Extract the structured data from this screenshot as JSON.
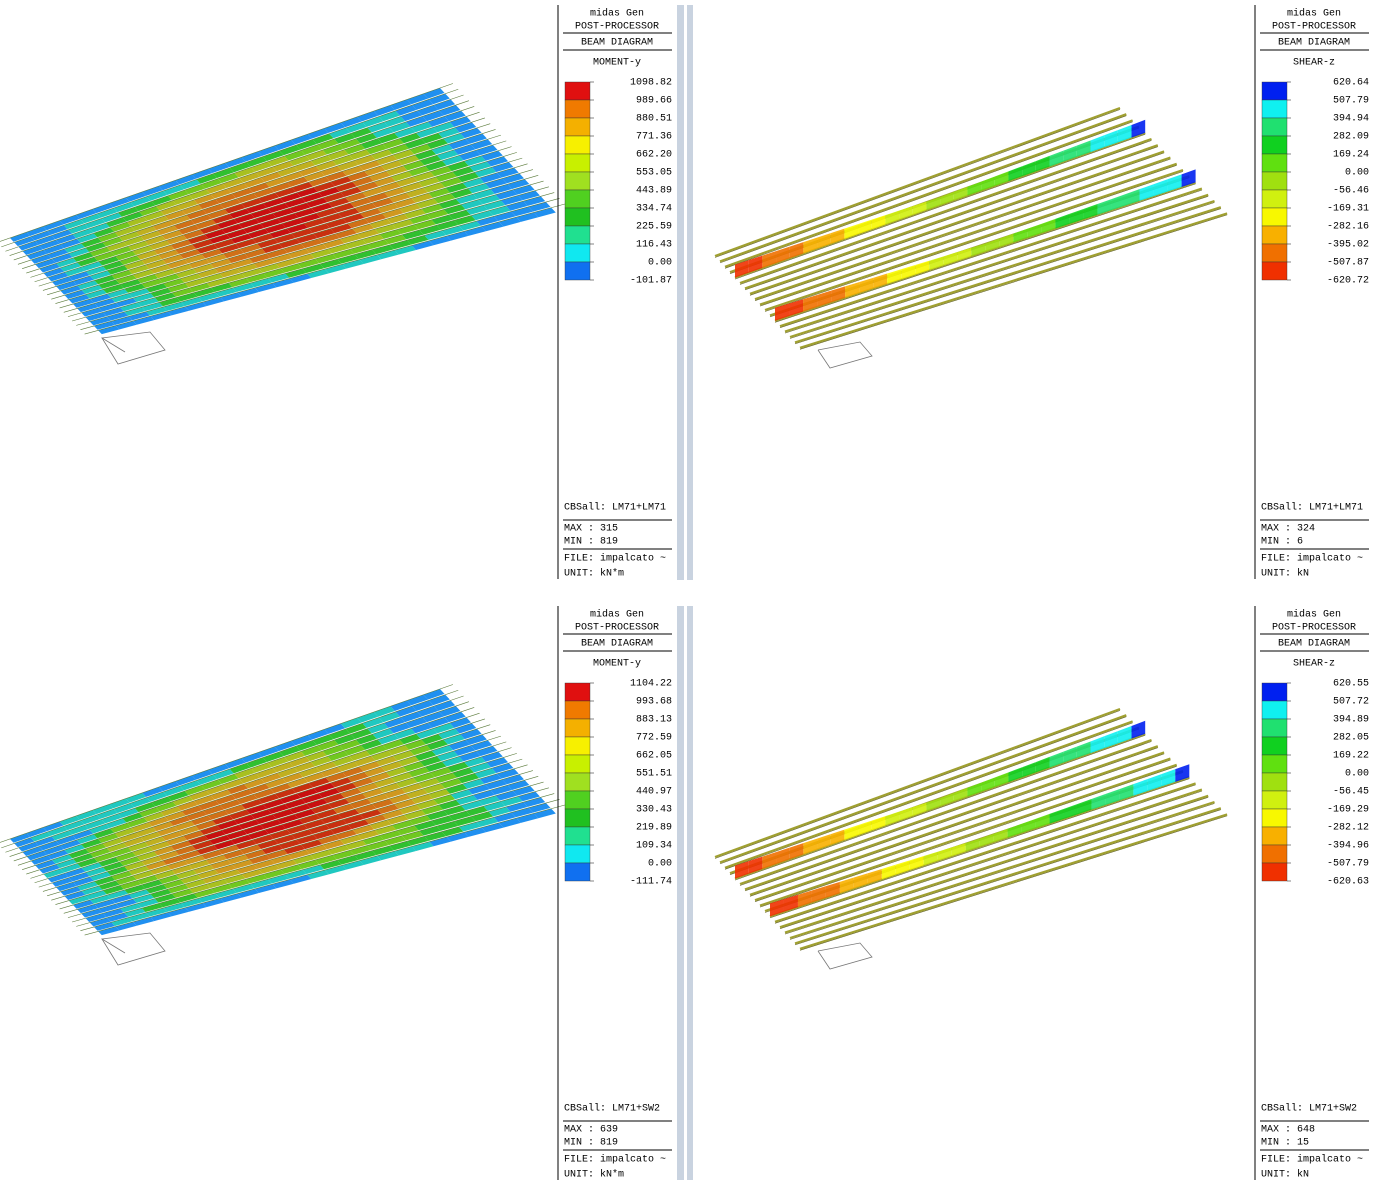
{
  "panels": [
    {
      "legend": {
        "program": "midas Gen",
        "mode": "POST-PROCESSOR",
        "diagram": "BEAM DIAGRAM",
        "component": "MOMENT-y",
        "levels": [
          "1098.82",
          "989.66",
          "880.51",
          "771.36",
          "662.20",
          "553.05",
          "443.89",
          "334.74",
          "225.59",
          "116.43",
          "0.00",
          "-101.87"
        ],
        "load_case": "CBSall: LM71+LM71",
        "max": "MAX : 315",
        "min": "MIN : 819",
        "file": "FILE: impalcato ~",
        "unit": "UNIT: kN*m"
      }
    },
    {
      "legend": {
        "program": "midas Gen",
        "mode": "POST-PROCESSOR",
        "diagram": "BEAM DIAGRAM",
        "component": "SHEAR-z",
        "levels": [
          "620.64",
          "507.79",
          "394.94",
          "282.09",
          "169.24",
          "0.00",
          "-56.46",
          "-169.31",
          "-282.16",
          "-395.02",
          "-507.87",
          "-620.72"
        ],
        "load_case": "CBSall: LM71+LM71",
        "max": "MAX : 324",
        "min": "MIN : 6",
        "file": "FILE: impalcato ~",
        "unit": "UNIT: kN"
      }
    },
    {
      "legend": {
        "program": "midas Gen",
        "mode": "POST-PROCESSOR",
        "diagram": "BEAM DIAGRAM",
        "component": "MOMENT-y",
        "levels": [
          "1104.22",
          "993.68",
          "883.13",
          "772.59",
          "662.05",
          "551.51",
          "440.97",
          "330.43",
          "219.89",
          "109.34",
          "0.00",
          "-111.74"
        ],
        "load_case": "CBSall: LM71+SW2",
        "max": "MAX : 639",
        "min": "MIN : 819",
        "file": "FILE: impalcato ~",
        "unit": "UNIT: kN*m"
      }
    },
    {
      "legend": {
        "program": "midas Gen",
        "mode": "POST-PROCESSOR",
        "diagram": "BEAM DIAGRAM",
        "component": "SHEAR-z",
        "levels": [
          "620.55",
          "507.72",
          "394.89",
          "282.05",
          "169.22",
          "0.00",
          "-56.45",
          "-169.29",
          "-282.12",
          "-394.96",
          "-507.79",
          "-620.63"
        ],
        "load_case": "CBSall: LM71+SW2",
        "max": "MAX : 648",
        "min": "MIN : 15",
        "file": "FILE: impalcato ~",
        "unit": "UNIT: kN"
      }
    }
  ]
}
